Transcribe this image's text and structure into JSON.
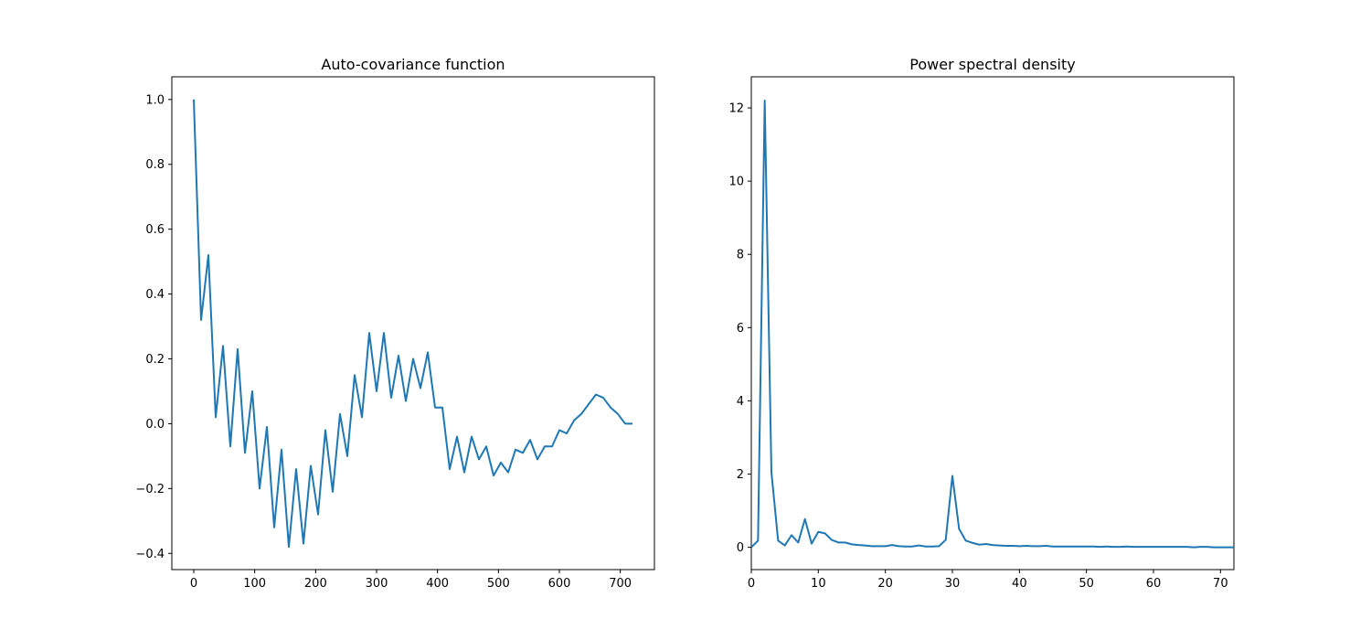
{
  "chart_data": [
    {
      "type": "line",
      "title": "Auto-covariance function",
      "xlabel": "",
      "ylabel": "",
      "xlim": [
        -36,
        756
      ],
      "ylim": [
        -0.45,
        1.07
      ],
      "xticks": [
        0,
        100,
        200,
        300,
        400,
        500,
        600,
        700
      ],
      "yticks": [
        -0.4,
        -0.2,
        0.0,
        0.2,
        0.4,
        0.6,
        0.8,
        1.0
      ],
      "ytick_labels": [
        "−0.4",
        "−0.2",
        "0.0",
        "0.2",
        "0.4",
        "0.6",
        "0.8",
        "1.0"
      ],
      "grid": false,
      "color": "#1f77b4",
      "series": [
        {
          "x": [
            0,
            12,
            24,
            36,
            48,
            60,
            72,
            84,
            96,
            108,
            120,
            132,
            144,
            156,
            168,
            180,
            192,
            204,
            216,
            228,
            240,
            252,
            264,
            276,
            288,
            300,
            312,
            324,
            336,
            348,
            360,
            372,
            384,
            396,
            408,
            420,
            432,
            444,
            456,
            468,
            480,
            492,
            504,
            516,
            528,
            540,
            552,
            564,
            576,
            588,
            600,
            612,
            624,
            636,
            648,
            660,
            672,
            684,
            696,
            708,
            720
          ],
          "y": [
            1.0,
            0.32,
            0.52,
            0.02,
            0.24,
            -0.07,
            0.23,
            -0.09,
            0.1,
            -0.2,
            -0.01,
            -0.32,
            -0.08,
            -0.38,
            -0.14,
            -0.37,
            -0.13,
            -0.28,
            -0.02,
            -0.21,
            0.03,
            -0.1,
            0.15,
            0.02,
            0.28,
            0.1,
            0.28,
            0.08,
            0.21,
            0.07,
            0.2,
            0.11,
            0.22,
            0.05,
            0.05,
            -0.14,
            -0.04,
            -0.15,
            -0.04,
            -0.11,
            -0.07,
            -0.16,
            -0.12,
            -0.15,
            -0.08,
            -0.09,
            -0.05,
            -0.11,
            -0.07,
            -0.07,
            -0.02,
            -0.03,
            0.01,
            0.03,
            0.06,
            0.09,
            0.08,
            0.05,
            0.03,
            0.0,
            0.0
          ]
        }
      ]
    },
    {
      "type": "line",
      "title": "Power spectral density",
      "xlabel": "",
      "ylabel": "",
      "xlim": [
        0,
        72
      ],
      "ylim": [
        -0.61,
        12.85
      ],
      "xticks": [
        0,
        10,
        20,
        30,
        40,
        50,
        60,
        70
      ],
      "yticks": [
        0,
        2,
        4,
        6,
        8,
        10,
        12
      ],
      "grid": false,
      "color": "#1f77b4",
      "series": [
        {
          "x": [
            0,
            1,
            2,
            3,
            4,
            5,
            6,
            7,
            8,
            9,
            10,
            11,
            12,
            13,
            14,
            15,
            16,
            17,
            18,
            19,
            20,
            21,
            22,
            23,
            24,
            25,
            26,
            27,
            28,
            29,
            30,
            31,
            32,
            33,
            34,
            35,
            36,
            37,
            38,
            39,
            40,
            41,
            42,
            43,
            44,
            45,
            46,
            47,
            48,
            49,
            50,
            51,
            52,
            53,
            54,
            55,
            56,
            57,
            58,
            59,
            60,
            61,
            62,
            63,
            64,
            65,
            66,
            67,
            68,
            69,
            70,
            71,
            72
          ],
          "y": [
            0.0,
            0.18,
            12.2,
            2.05,
            0.18,
            0.05,
            0.33,
            0.13,
            0.77,
            0.1,
            0.42,
            0.38,
            0.2,
            0.13,
            0.13,
            0.08,
            0.06,
            0.05,
            0.03,
            0.03,
            0.03,
            0.06,
            0.03,
            0.02,
            0.02,
            0.05,
            0.02,
            0.02,
            0.03,
            0.2,
            1.95,
            0.5,
            0.18,
            0.12,
            0.07,
            0.09,
            0.06,
            0.05,
            0.04,
            0.04,
            0.03,
            0.04,
            0.03,
            0.03,
            0.04,
            0.02,
            0.02,
            0.02,
            0.02,
            0.02,
            0.02,
            0.02,
            0.01,
            0.02,
            0.01,
            0.01,
            0.02,
            0.01,
            0.01,
            0.01,
            0.01,
            0.01,
            0.01,
            0.01,
            0.01,
            0.01,
            0.0,
            0.01,
            0.01,
            0.0,
            0.0,
            0.0,
            0.0
          ]
        }
      ]
    }
  ]
}
